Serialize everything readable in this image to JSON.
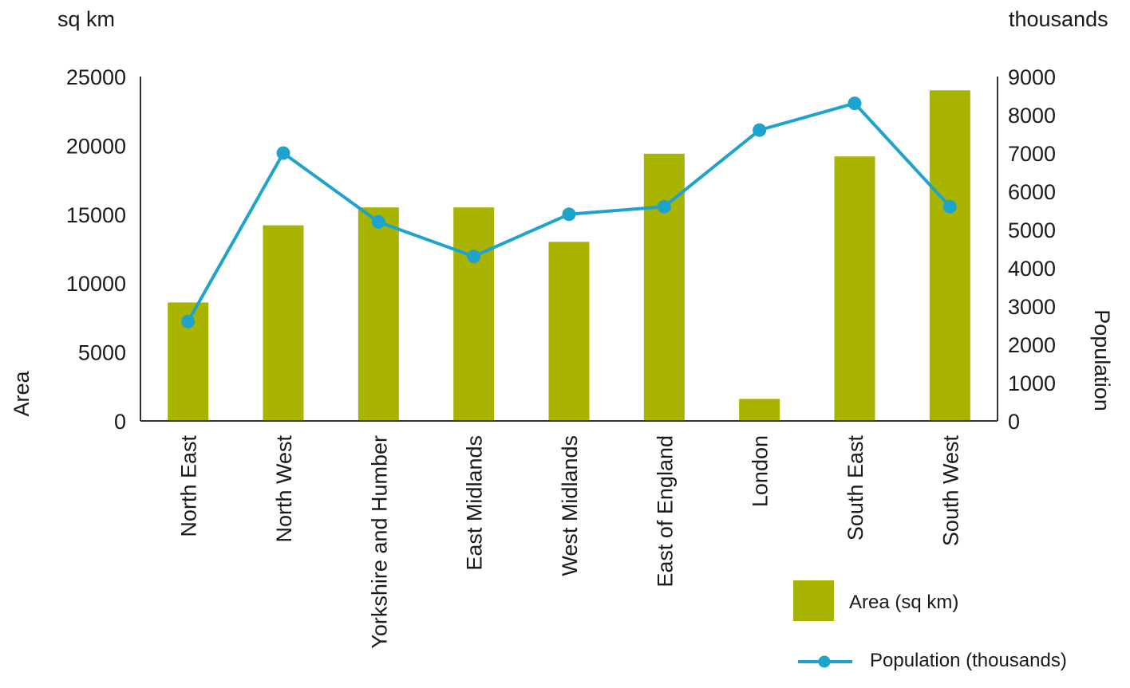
{
  "chart_data": {
    "type": "bar",
    "categories": [
      "North East",
      "North West",
      "Yorkshire and Humber",
      "East Midlands",
      "West Midlands",
      "East of England",
      "London",
      "South East",
      "South West"
    ],
    "series": [
      {
        "name": "Area (sq km)",
        "type": "bar",
        "axis": "left",
        "values": [
          8600,
          14200,
          15500,
          15500,
          13000,
          19400,
          1600,
          19200,
          24000
        ]
      },
      {
        "name": "Population (thousands)",
        "type": "line",
        "axis": "right",
        "values": [
          2600,
          7000,
          5200,
          4300,
          5400,
          5600,
          7600,
          8300,
          5600
        ]
      }
    ],
    "y_left": {
      "label": "Area",
      "unit": "sq km",
      "ylim": [
        0,
        25000
      ],
      "ticks": [
        "0",
        "5000",
        "10000",
        "15000",
        "20000",
        "25000"
      ]
    },
    "y_right": {
      "label": "Population",
      "unit": "thousands",
      "ylim": [
        0,
        9000
      ],
      "ticks": [
        "0",
        "1000",
        "2000",
        "3000",
        "4000",
        "5000",
        "6000",
        "7000",
        "8000",
        "9000"
      ]
    },
    "legend_position": "bottom-right",
    "grid": false,
    "colors": {
      "bar": "#a8b400",
      "line": "#1ea3cc",
      "axis": "#333333"
    }
  }
}
